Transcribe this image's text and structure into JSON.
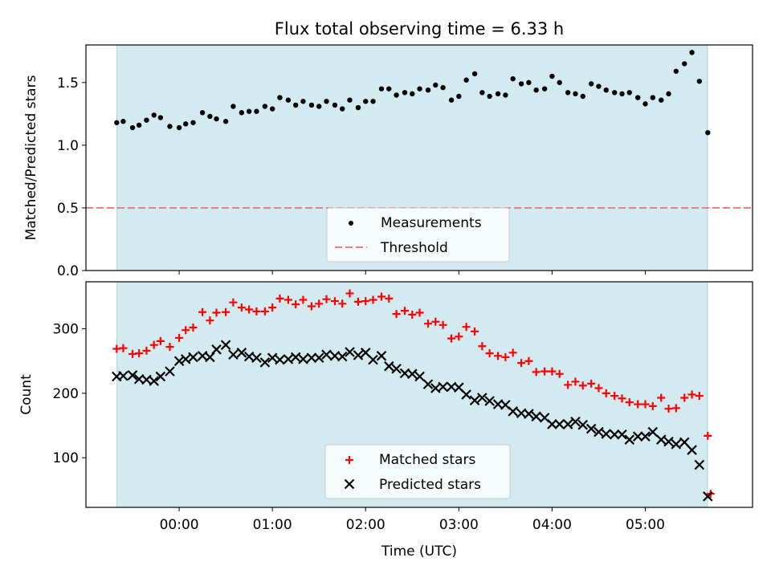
{
  "title": "Flux total observing time = 6.33 h",
  "colors": {
    "shade": "#d3eaf0",
    "threshold": "#f08080",
    "matched": "#ff0000",
    "predicted": "#000000",
    "points": "#000000"
  },
  "chart_data": [
    {
      "type": "scatter",
      "ylabel": "Matched/Predicted stars",
      "xlabel": "",
      "ylim": [
        0,
        1.8
      ],
      "xlim_hours": [
        -1.0,
        6.15
      ],
      "xlim": [
        "22:60",
        "06:09"
      ],
      "shade_span": [
        "23:20",
        "05:40"
      ],
      "yticks": [
        "0.0",
        "0.5",
        "1.0",
        "1.5"
      ],
      "ytick_values": [
        0,
        0.5,
        1.0,
        1.5
      ],
      "legend": {
        "placement": "lower center",
        "entries": [
          "Measurements",
          "Threshold"
        ]
      },
      "threshold": 0.5,
      "series": [
        {
          "name": "Measurements",
          "x_hours": [
            -0.67,
            -0.6,
            -0.5,
            -0.43,
            -0.35,
            -0.27,
            -0.2,
            -0.1,
            0,
            0.07,
            0.15,
            0.25,
            0.33,
            0.4,
            0.5,
            0.58,
            0.67,
            0.75,
            0.83,
            0.92,
            1.0,
            1.08,
            1.17,
            1.25,
            1.33,
            1.42,
            1.5,
            1.58,
            1.67,
            1.75,
            1.83,
            1.92,
            2.0,
            2.08,
            2.17,
            2.25,
            2.33,
            2.42,
            2.5,
            2.58,
            2.67,
            2.75,
            2.83,
            2.92,
            3.0,
            3.08,
            3.17,
            3.25,
            3.33,
            3.42,
            3.5,
            3.58,
            3.67,
            3.75,
            3.83,
            3.92,
            4.0,
            4.08,
            4.17,
            4.25,
            4.33,
            4.42,
            4.5,
            4.58,
            4.67,
            4.75,
            4.83,
            4.92,
            5.0,
            5.08,
            5.17,
            5.25,
            5.33,
            5.42,
            5.5,
            5.58,
            5.67
          ],
          "y": [
            1.18,
            1.19,
            1.14,
            1.16,
            1.2,
            1.24,
            1.22,
            1.15,
            1.14,
            1.17,
            1.18,
            1.26,
            1.23,
            1.21,
            1.19,
            1.31,
            1.26,
            1.27,
            1.27,
            1.31,
            1.29,
            1.38,
            1.36,
            1.32,
            1.35,
            1.32,
            1.31,
            1.35,
            1.32,
            1.29,
            1.36,
            1.3,
            1.35,
            1.35,
            1.45,
            1.45,
            1.4,
            1.42,
            1.41,
            1.45,
            1.44,
            1.48,
            1.46,
            1.36,
            1.39,
            1.52,
            1.57,
            1.42,
            1.39,
            1.41,
            1.4,
            1.53,
            1.49,
            1.5,
            1.44,
            1.45,
            1.55,
            1.5,
            1.42,
            1.41,
            1.39,
            1.49,
            1.47,
            1.44,
            1.42,
            1.41,
            1.42,
            1.38,
            1.33,
            1.38,
            1.36,
            1.41,
            1.59,
            1.65,
            1.74,
            1.51,
            1.1
          ]
        }
      ]
    },
    {
      "type": "scatter",
      "ylabel": "Count",
      "xlabel": "Time (UTC)",
      "ylim": [
        23,
        373
      ],
      "xlim_hours": [
        -1.0,
        6.15
      ],
      "xlim": [
        "22:60",
        "06:09"
      ],
      "shade_span": [
        "23:20",
        "05:40"
      ],
      "xticks": [
        "00:00",
        "01:00",
        "02:00",
        "03:00",
        "04:00",
        "05:00"
      ],
      "xtick_hours": [
        0,
        1,
        2,
        3,
        4,
        5
      ],
      "yticks": [
        "100",
        "200",
        "300"
      ],
      "ytick_values": [
        100,
        200,
        300
      ],
      "legend": {
        "placement": "lower center",
        "entries": [
          "Matched stars",
          "Predicted stars"
        ]
      },
      "x_hours": [
        -0.67,
        -0.6,
        -0.5,
        -0.43,
        -0.35,
        -0.27,
        -0.2,
        -0.1,
        0,
        0.07,
        0.15,
        0.25,
        0.33,
        0.4,
        0.5,
        0.58,
        0.67,
        0.75,
        0.83,
        0.92,
        1.0,
        1.08,
        1.17,
        1.25,
        1.33,
        1.42,
        1.5,
        1.58,
        1.67,
        1.75,
        1.83,
        1.92,
        2.0,
        2.08,
        2.17,
        2.25,
        2.33,
        2.42,
        2.5,
        2.58,
        2.67,
        2.75,
        2.83,
        2.92,
        3.0,
        3.08,
        3.17,
        3.25,
        3.33,
        3.42,
        3.5,
        3.58,
        3.67,
        3.75,
        3.83,
        3.92,
        4.0,
        4.08,
        4.17,
        4.25,
        4.33,
        4.42,
        4.5,
        4.58,
        4.67,
        4.75,
        4.83,
        4.92,
        5.0,
        5.08,
        5.17,
        5.25,
        5.33,
        5.42,
        5.5,
        5.58,
        5.67
      ],
      "series": [
        {
          "name": "Matched stars",
          "marker": "plus",
          "values": [
            269,
            270,
            261,
            262,
            266,
            275,
            281,
            272,
            286,
            298,
            302,
            326,
            313,
            325,
            326,
            341,
            333,
            330,
            327,
            327,
            333,
            347,
            345,
            338,
            345,
            335,
            339,
            346,
            343,
            339,
            355,
            342,
            343,
            345,
            350,
            347,
            323,
            328,
            322,
            325,
            308,
            311,
            306,
            285,
            288,
            303,
            296,
            273,
            262,
            258,
            256,
            263,
            247,
            250,
            233,
            234,
            234,
            230,
            213,
            218,
            212,
            215,
            208,
            200,
            196,
            192,
            186,
            183,
            183,
            180,
            193,
            176,
            177,
            193,
            198,
            196,
            134
          ]
        },
        {
          "name": "Predicted stars",
          "marker": "x",
          "values": [
            226,
            227,
            228,
            222,
            221,
            219,
            226,
            234,
            250,
            253,
            256,
            258,
            256,
            268,
            275,
            260,
            263,
            257,
            255,
            248,
            255,
            252,
            253,
            256,
            253,
            255,
            255,
            260,
            258,
            257,
            264,
            259,
            263,
            252,
            258,
            242,
            238,
            231,
            230,
            226,
            214,
            208,
            210,
            210,
            209,
            198,
            189,
            193,
            188,
            183,
            182,
            172,
            169,
            168,
            164,
            162,
            152,
            152,
            152,
            156,
            151,
            145,
            140,
            137,
            136,
            136,
            128,
            133,
            133,
            140,
            128,
            125,
            121,
            124,
            112,
            89,
            40
          ]
        }
      ]
    }
  ]
}
